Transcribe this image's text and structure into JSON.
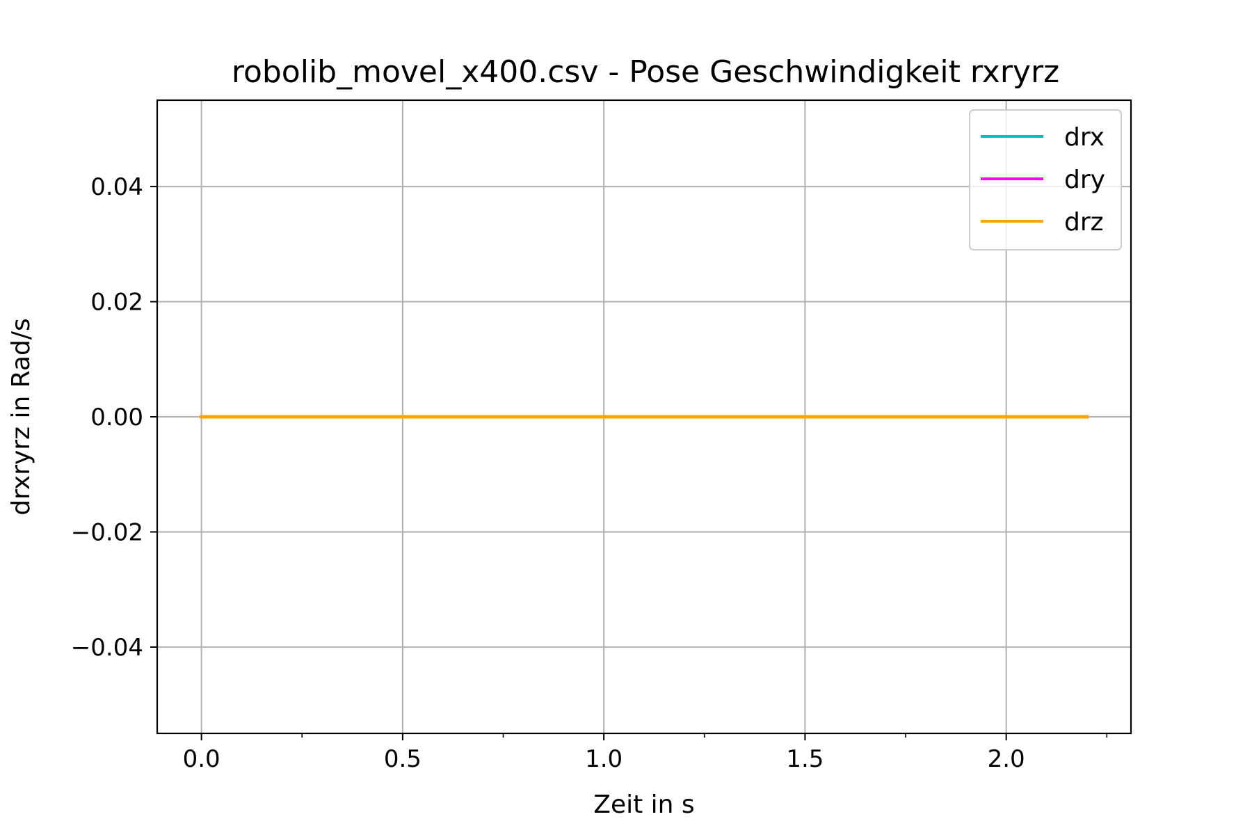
{
  "chart_data": {
    "type": "line",
    "title": "robolib_movel_x400.csv - Pose Geschwindigkeit rxryrz",
    "xlabel": "Zeit in s",
    "ylabel": "drxryrz in Rad/s",
    "xlim": [
      -0.11,
      2.31
    ],
    "ylim": [
      -0.055,
      0.055
    ],
    "xticks": [
      0.0,
      0.5,
      1.0,
      1.5,
      2.0
    ],
    "xtick_labels": [
      "0.0",
      "0.5",
      "1.0",
      "1.5",
      "2.0"
    ],
    "xminor_ticks": [
      0.25,
      0.75,
      1.25,
      1.75,
      2.25
    ],
    "yticks": [
      -0.04,
      -0.02,
      0.0,
      0.02,
      0.04
    ],
    "ytick_labels": [
      "−0.04",
      "−0.02",
      "0.00",
      "0.02",
      "0.04"
    ],
    "grid": true,
    "legend_position": "top-right",
    "x": [
      0.0,
      2.2
    ],
    "series": [
      {
        "name": "drx",
        "color": "#00bfbf",
        "values": [
          0.0,
          0.0
        ]
      },
      {
        "name": "dry",
        "color": "#ff00ff",
        "values": [
          0.0,
          0.0
        ]
      },
      {
        "name": "drz",
        "color": "#ffa500",
        "values": [
          0.0,
          0.0
        ]
      }
    ]
  }
}
